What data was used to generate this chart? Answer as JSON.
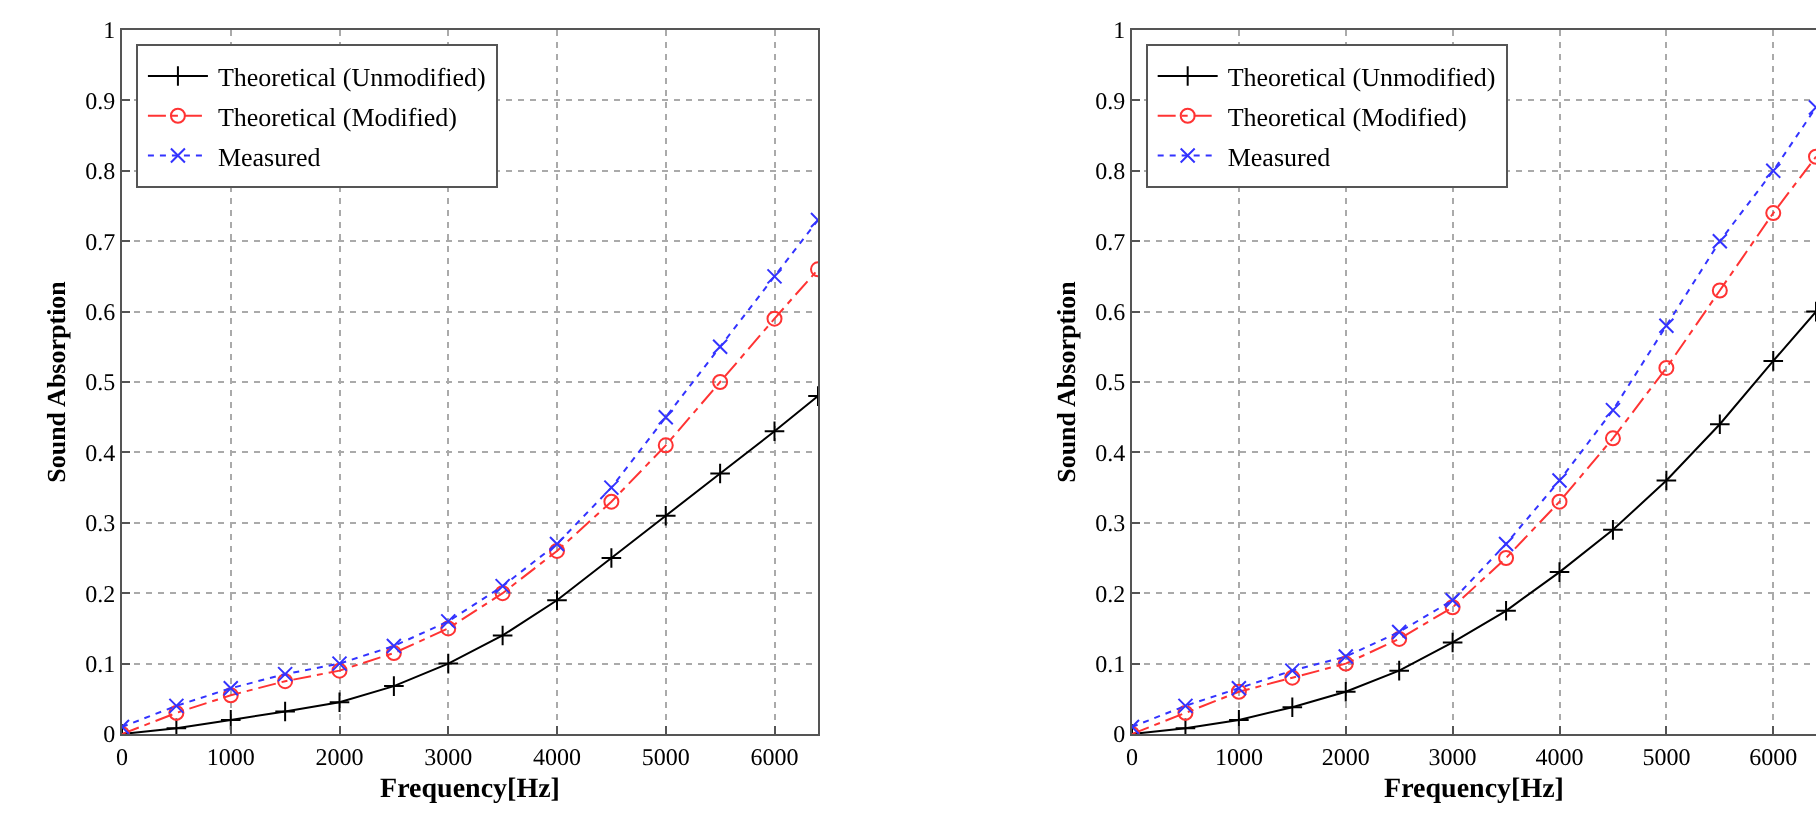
{
  "chart_data": [
    {
      "type": "line",
      "xlabel": "Frequency[Hz]",
      "ylabel": "Sound Absorption",
      "x": [
        0,
        500,
        1000,
        1500,
        2000,
        2500,
        3000,
        3500,
        4000,
        4500,
        5000,
        5500,
        6000,
        6400
      ],
      "series": [
        {
          "name": "Theoretical (Unmodified)",
          "color": "#000000",
          "marker": "cross",
          "line_style": "solid",
          "values": [
            0,
            0.008,
            0.02,
            0.032,
            0.045,
            0.068,
            0.1,
            0.14,
            0.19,
            0.25,
            0.31,
            0.37,
            0.43,
            0.48
          ]
        },
        {
          "name": "Theoretical (Modified)",
          "color": "#ff3333",
          "marker": "circle",
          "line_style": "dashed",
          "values": [
            0,
            0.03,
            0.055,
            0.075,
            0.09,
            0.115,
            0.15,
            0.2,
            0.26,
            0.33,
            0.41,
            0.5,
            0.59,
            0.66
          ]
        },
        {
          "name": "Measured",
          "color": "#3333ff",
          "marker": "cross",
          "line_style": "dotted",
          "values": [
            0.01,
            0.04,
            0.065,
            0.085,
            0.1,
            0.125,
            0.16,
            0.21,
            0.27,
            0.35,
            0.45,
            0.55,
            0.65,
            0.73
          ]
        }
      ],
      "xlim": [
        0,
        6400
      ],
      "xticks": [
        0,
        1000,
        2000,
        3000,
        4000,
        5000,
        6000
      ],
      "ylim": [
        0,
        1
      ],
      "yticks": [
        0,
        0.1,
        0.2,
        0.3,
        0.4,
        0.5,
        0.6,
        0.7,
        0.8,
        0.9,
        1
      ],
      "grid": true,
      "legend": "top left"
    },
    {
      "type": "line",
      "xlabel": "Frequency[Hz]",
      "ylabel": "Sound Absorption",
      "x": [
        0,
        500,
        1000,
        1500,
        2000,
        2500,
        3000,
        3500,
        4000,
        4500,
        5000,
        5500,
        6000,
        6400
      ],
      "series": [
        {
          "name": "Theoretical (Unmodified)",
          "color": "#000000",
          "marker": "cross",
          "line_style": "solid",
          "values": [
            0,
            0.008,
            0.02,
            0.038,
            0.06,
            0.09,
            0.13,
            0.175,
            0.23,
            0.29,
            0.36,
            0.44,
            0.53,
            0.6
          ]
        },
        {
          "name": "Theoretical (Modified)",
          "color": "#ff3333",
          "marker": "circle",
          "line_style": "dashed",
          "values": [
            0,
            0.03,
            0.06,
            0.08,
            0.1,
            0.135,
            0.18,
            0.25,
            0.33,
            0.42,
            0.52,
            0.63,
            0.74,
            0.82
          ]
        },
        {
          "name": "Measured",
          "color": "#3333ff",
          "marker": "cross",
          "line_style": "dotted",
          "values": [
            0.01,
            0.04,
            0.065,
            0.09,
            0.11,
            0.145,
            0.19,
            0.27,
            0.36,
            0.46,
            0.58,
            0.7,
            0.8,
            0.89
          ]
        }
      ],
      "xlim": [
        0,
        6400
      ],
      "xticks": [
        0,
        1000,
        2000,
        3000,
        4000,
        5000,
        6000
      ],
      "ylim": [
        0,
        1
      ],
      "yticks": [
        0,
        0.1,
        0.2,
        0.3,
        0.4,
        0.5,
        0.6,
        0.7,
        0.8,
        0.9,
        1
      ],
      "grid": true,
      "legend": "top left"
    }
  ]
}
